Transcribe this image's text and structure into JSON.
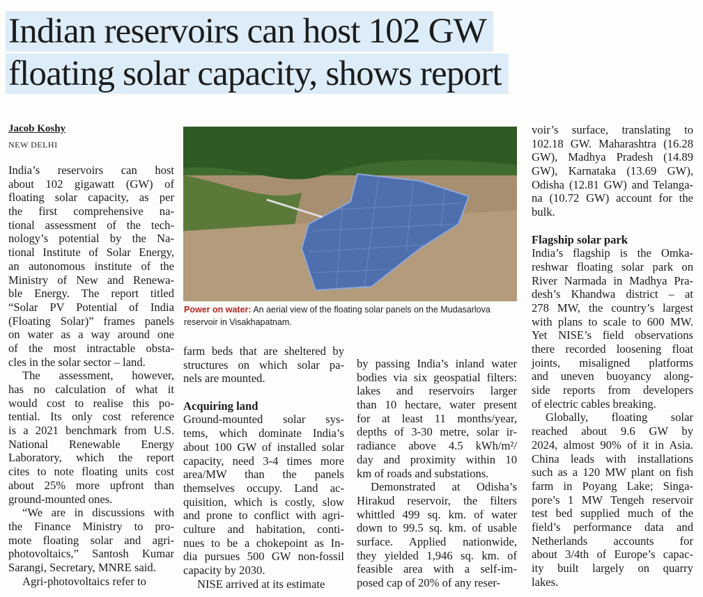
{
  "article": {
    "headline": [
      "Indian reservoirs can host 102 GW",
      "floating solar capacity, shows report"
    ],
    "byline": "Jacob Koshy",
    "dateline": "NEW DELHI",
    "caption": {
      "lead": "Power on water:",
      "text": "An aerial view of the floating solar panels on the Mudasarlova reservoir in Visakhapatnam."
    },
    "columns": [
      {
        "blocks": [
          {
            "lines": [
              "India’s reservoirs can host",
              "about 102 gigawatt (GW) of",
              "floating solar capacity, as per",
              "the first comprehensive na-",
              "tional assessment of the tech-",
              "nology’s potential by the Na-",
              "tional Institute of Solar Energy,",
              "an autonomous institute of the",
              "Ministry of New and Renewa-",
              "ble Energy. The report titled",
              "“Solar PV Potential of India",
              "(Floating Solar)” frames panels",
              "on water as a way around one",
              "of the most intractable obsta-",
              "cles in the solar sector – land."
            ]
          },
          {
            "lines": [
              "The assessment, however,",
              "has no calculation of what it",
              "would cost to realise this po-",
              "tential. Its only cost reference",
              "is a 2021 benchmark from U.S.",
              "National Renewable Energy",
              "Laboratory, which the report",
              "cites to note floating units cost",
              "about 25% more upfront than",
              "ground-mounted ones."
            ]
          },
          {
            "lines": [
              "“We are in discussions with",
              "the Finance Ministry to pro-",
              "mote floating solar and agri-",
              "photovoltaics,” Santosh Kumar",
              "Sarangi, Secretary, MNRE said."
            ]
          },
          {
            "lines": [
              "Agri-photovoltaics refer to"
            ]
          }
        ]
      },
      {
        "blocks": [
          {
            "lines": [
              "farm beds that are sheltered by",
              "structures on which solar pa-",
              "nels are mounted."
            ]
          },
          {
            "heading": "Acquiring land"
          },
          {
            "lines": [
              "Ground-mounted solar sys-",
              "tems, which dominate India’s",
              "about 100 GW of installed solar",
              "capacity, need 3-4 times more",
              "area/MW than the panels",
              "themselves occupy. Land ac-",
              "quisition, which is costly, slow",
              "and prone to conflict with agri-",
              "culture and habitation, conti-",
              "nues to be a chokepoint as In-",
              "dia pursues 500 GW non-fossil",
              "capacity by 2030."
            ]
          },
          {
            "lines": [
              "NISE arrived at its estimate"
            ]
          }
        ]
      },
      {
        "blocks": [
          {
            "lines": [
              "by passing India’s inland water",
              "bodies via six geospatial filters:",
              "lakes and reservoirs larger",
              "than 10 hectare, water present",
              "for at least 11 months/year,",
              "depths of 3-30 metre, solar ir-",
              "radiance above 4.5 kWh/m²/",
              "day and proximity within 10",
              "km of roads and substations."
            ]
          },
          {
            "lines": [
              "Demonstrated at Odisha’s",
              "Hirakud reservoir, the filters",
              "whittled 499 sq. km. of water",
              "down to 99.5 sq. km. of usable",
              "surface. Applied nationwide,",
              "they yielded 1,946 sq. km. of",
              "feasible area with a self-im-",
              "posed cap of 20% of any reser-"
            ]
          }
        ]
      },
      {
        "blocks": [
          {
            "lines": [
              "voir’s surface, translating to",
              "102.18 GW. Maharashtra (16.28",
              "GW), Madhya Pradesh (14.89",
              "GW), Karnataka (13.69 GW),",
              "Odisha (12.81 GW) and Telanga-",
              "na (10.72 GW) account for the",
              "bulk."
            ]
          },
          {
            "heading": "Flagship solar park"
          },
          {
            "lines": [
              "India’s flagship is the Omka-",
              "reshwar floating solar park on",
              "River Narmada in Madhya Pra-",
              "desh’s Khandwa district – at",
              "278 MW, the country’s largest",
              "with plans to scale to 600 MW.",
              "Yet NISE’s field observations",
              "there recorded loosening float",
              "joints, misaligned platforms",
              "and uneven buoyancy along-",
              "side reports from developers",
              "of electric cables breaking."
            ]
          },
          {
            "lines": [
              "Globally, floating solar",
              "reached about 9.6 GW by",
              "2024, almost 90% of it in Asia.",
              "China leads with installations",
              "such as a 120 MW plant on fish",
              "farm in Poyang Lake; Singa-",
              "pore’s 1 MW Tengeh reservoir",
              "test bed supplied much of the",
              "field’s performance data and",
              "Netherlands accounts for",
              "about 3/4th of Europe’s capac-",
              "ity built largely on quarry",
              "lakes."
            ]
          }
        ]
      }
    ]
  }
}
